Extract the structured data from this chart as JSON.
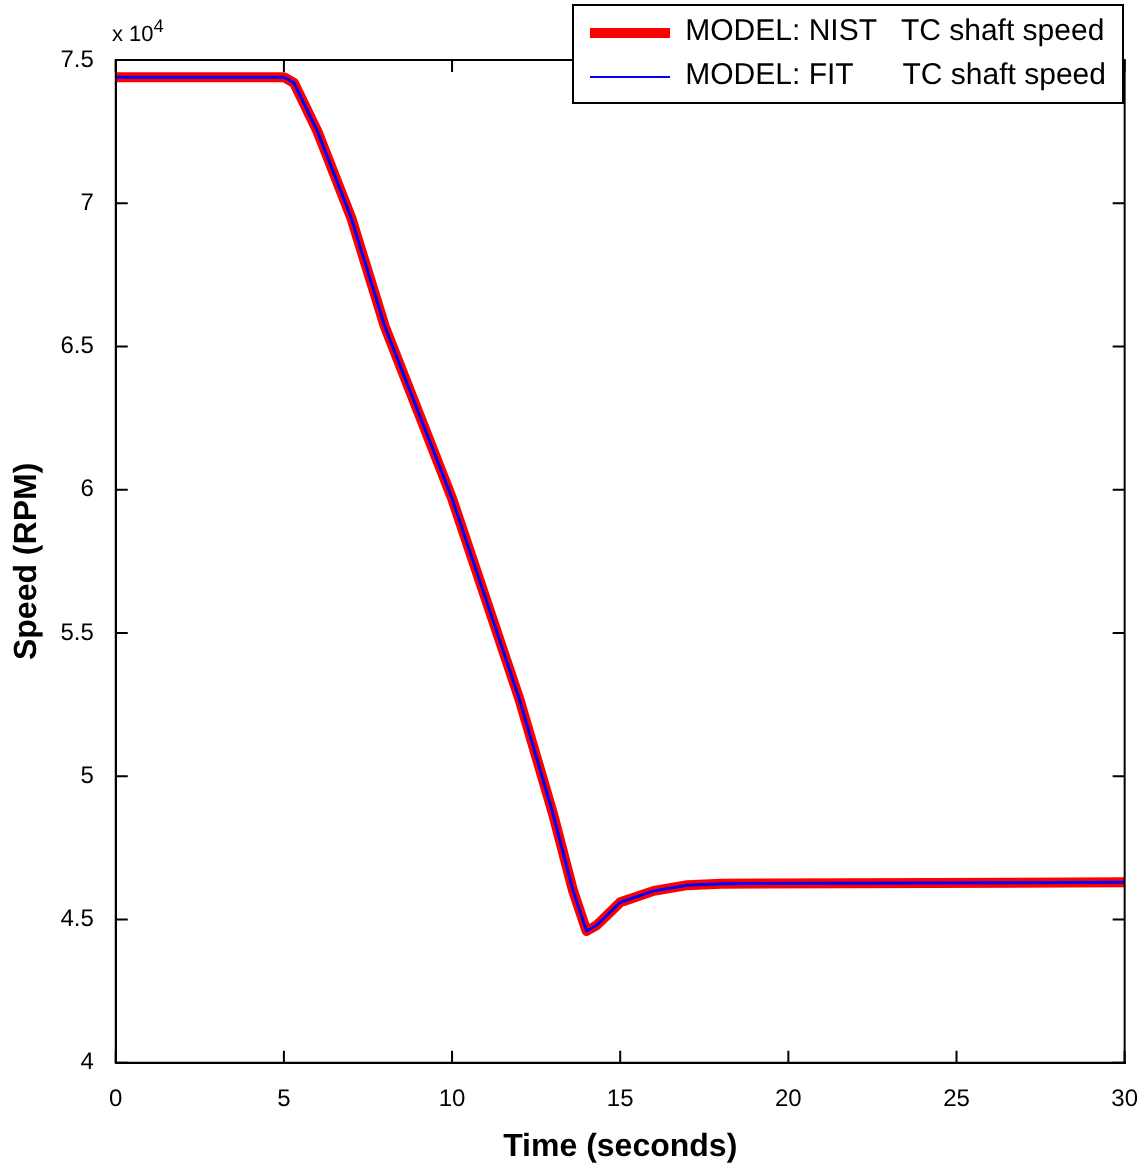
{
  "chart_data": {
    "type": "line",
    "xlabel": "Time (seconds)",
    "ylabel": "Speed (RPM)",
    "annotations": [
      "x 10$^{4}$"
    ],
    "xlim": [
      0,
      30
    ],
    "xticks": [
      0,
      5,
      10,
      15,
      20,
      25,
      30
    ],
    "ylim": [
      4,
      7.5
    ],
    "yticks": [
      4,
      4.5,
      5,
      5.5,
      6,
      6.5,
      7,
      7.5
    ],
    "grid": false,
    "legend": "top right",
    "marker": "none",
    "line_style": "solid",
    "x": [
      0,
      5,
      5.3,
      6,
      7,
      8,
      9,
      10,
      11,
      12,
      13,
      13.6,
      14,
      14.3,
      15,
      16,
      17,
      18,
      30
    ],
    "series": [
      {
        "name": "MODEL: NIST   TC shaft speed",
        "color": "#ff0000",
        "values": [
          7.44,
          7.44,
          7.42,
          7.25,
          6.95,
          6.57,
          6.27,
          5.97,
          5.62,
          5.27,
          4.87,
          4.6,
          4.46,
          4.48,
          4.56,
          4.6,
          4.62,
          4.625,
          4.63
        ]
      },
      {
        "name": "MODEL: FIT      TC shaft speed",
        "color": "#0000ff",
        "values": [
          7.44,
          7.44,
          7.42,
          7.25,
          6.95,
          6.57,
          6.27,
          5.97,
          5.62,
          5.27,
          4.87,
          4.6,
          4.46,
          4.48,
          4.56,
          4.6,
          4.62,
          4.625,
          4.63
        ]
      }
    ]
  }
}
